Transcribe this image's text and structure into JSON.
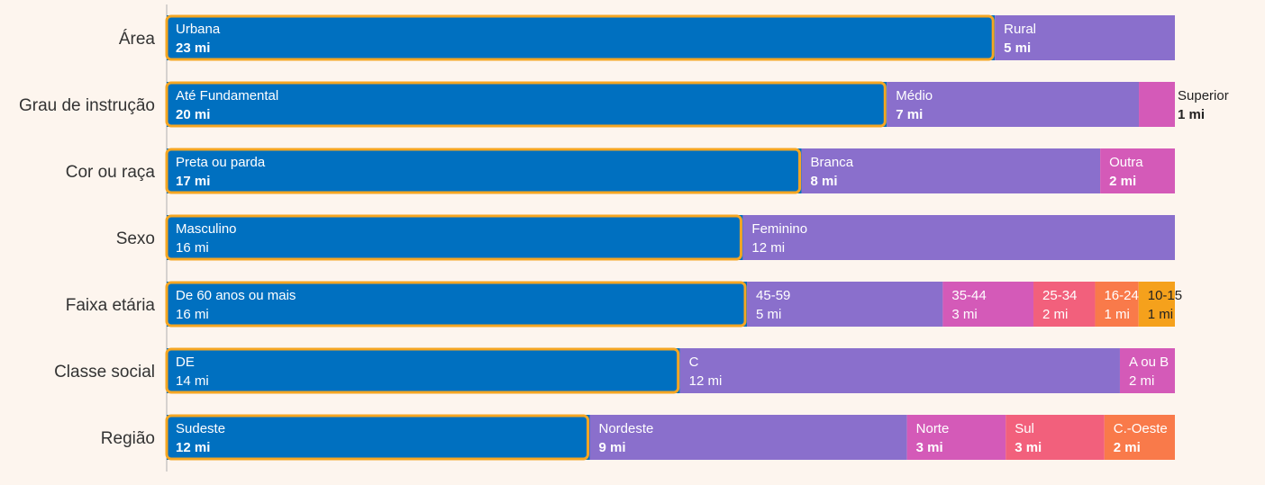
{
  "chart_data": {
    "type": "bar",
    "orientation": "horizontal",
    "stacked": true,
    "grid": false,
    "legend": "none",
    "highlight_color": "#f5a623",
    "colors": {
      "primary": "#0070c0",
      "purple": "#8a6fcc",
      "magenta": "#d45ab8",
      "pink": "#f2607c",
      "coral": "#f97a4a",
      "amber": "#f5a11c"
    },
    "rows": [
      {
        "label": "Área",
        "bold_values": true,
        "segments": [
          {
            "name": "Urbana",
            "value": 23,
            "value_label": "23 mi",
            "color": "#0070c0",
            "highlight": true
          },
          {
            "name": "Rural",
            "value": 5,
            "value_label": "5 mi",
            "color": "#8a6fcc"
          }
        ]
      },
      {
        "label": "Grau de instrução",
        "bold_values": true,
        "segments": [
          {
            "name": "Até Fundamental",
            "value": 20,
            "value_label": "20 mi",
            "color": "#0070c0",
            "highlight": true
          },
          {
            "name": "Médio",
            "value": 7,
            "value_label": "7 mi",
            "color": "#8a6fcc"
          },
          {
            "name": "Superior",
            "value": 1,
            "value_label": "1 mi",
            "color": "#d45ab8",
            "label_outside": true
          }
        ]
      },
      {
        "label": "Cor ou raça",
        "bold_values": true,
        "segments": [
          {
            "name": "Preta ou parda",
            "value": 17,
            "value_label": "17 mi",
            "color": "#0070c0",
            "highlight": true
          },
          {
            "name": "Branca",
            "value": 8,
            "value_label": "8 mi",
            "color": "#8a6fcc"
          },
          {
            "name": "Outra",
            "value": 2,
            "value_label": "2 mi",
            "color": "#d45ab8"
          }
        ]
      },
      {
        "label": "Sexo",
        "bold_values": false,
        "segments": [
          {
            "name": "Masculino",
            "value": 16,
            "value_label": "16 mi",
            "color": "#0070c0",
            "highlight": true
          },
          {
            "name": "Feminino",
            "value": 12,
            "value_label": "12 mi",
            "color": "#8a6fcc"
          }
        ]
      },
      {
        "label": "Faixa etária",
        "bold_values": false,
        "segments": [
          {
            "name": "De 60 anos ou mais",
            "value": 16,
            "value_label": "16 mi",
            "color": "#0070c0",
            "highlight": true
          },
          {
            "name": "45-59",
            "value": 5.4,
            "value_label": "5 mi",
            "color": "#8a6fcc"
          },
          {
            "name": "35-44",
            "value": 2.5,
            "value_label": "3 mi",
            "color": "#d45ab8"
          },
          {
            "name": "25-34",
            "value": 1.7,
            "value_label": "2 mi",
            "color": "#f2607c"
          },
          {
            "name": "16-24",
            "value": 1.2,
            "value_label": "1 mi",
            "color": "#f97a4a"
          },
          {
            "name": "10-15",
            "value": 1,
            "value_label": "1 mi",
            "color": "#f5a11c",
            "dark_text": true
          }
        ]
      },
      {
        "label": "Classe social",
        "bold_values": false,
        "segments": [
          {
            "name": "DE",
            "value": 14,
            "value_label": "14 mi",
            "color": "#0070c0",
            "highlight": true
          },
          {
            "name": "C",
            "value": 12,
            "value_label": "12 mi",
            "color": "#8a6fcc"
          },
          {
            "name": "A ou B",
            "value": 1.5,
            "value_label": "2 mi",
            "color": "#d45ab8"
          }
        ]
      },
      {
        "label": "Região",
        "bold_values": true,
        "segments": [
          {
            "name": "Sudeste",
            "value": 12,
            "value_label": "12 mi",
            "color": "#0070c0",
            "highlight": true
          },
          {
            "name": "Nordeste",
            "value": 9,
            "value_label": "9 mi",
            "color": "#8a6fcc"
          },
          {
            "name": "Norte",
            "value": 2.8,
            "value_label": "3 mi",
            "color": "#d45ab8"
          },
          {
            "name": "Sul",
            "value": 2.8,
            "value_label": "3 mi",
            "color": "#f2607c"
          },
          {
            "name": "C.-Oeste",
            "value": 2,
            "value_label": "2 mi",
            "color": "#f97a4a"
          }
        ]
      }
    ]
  }
}
